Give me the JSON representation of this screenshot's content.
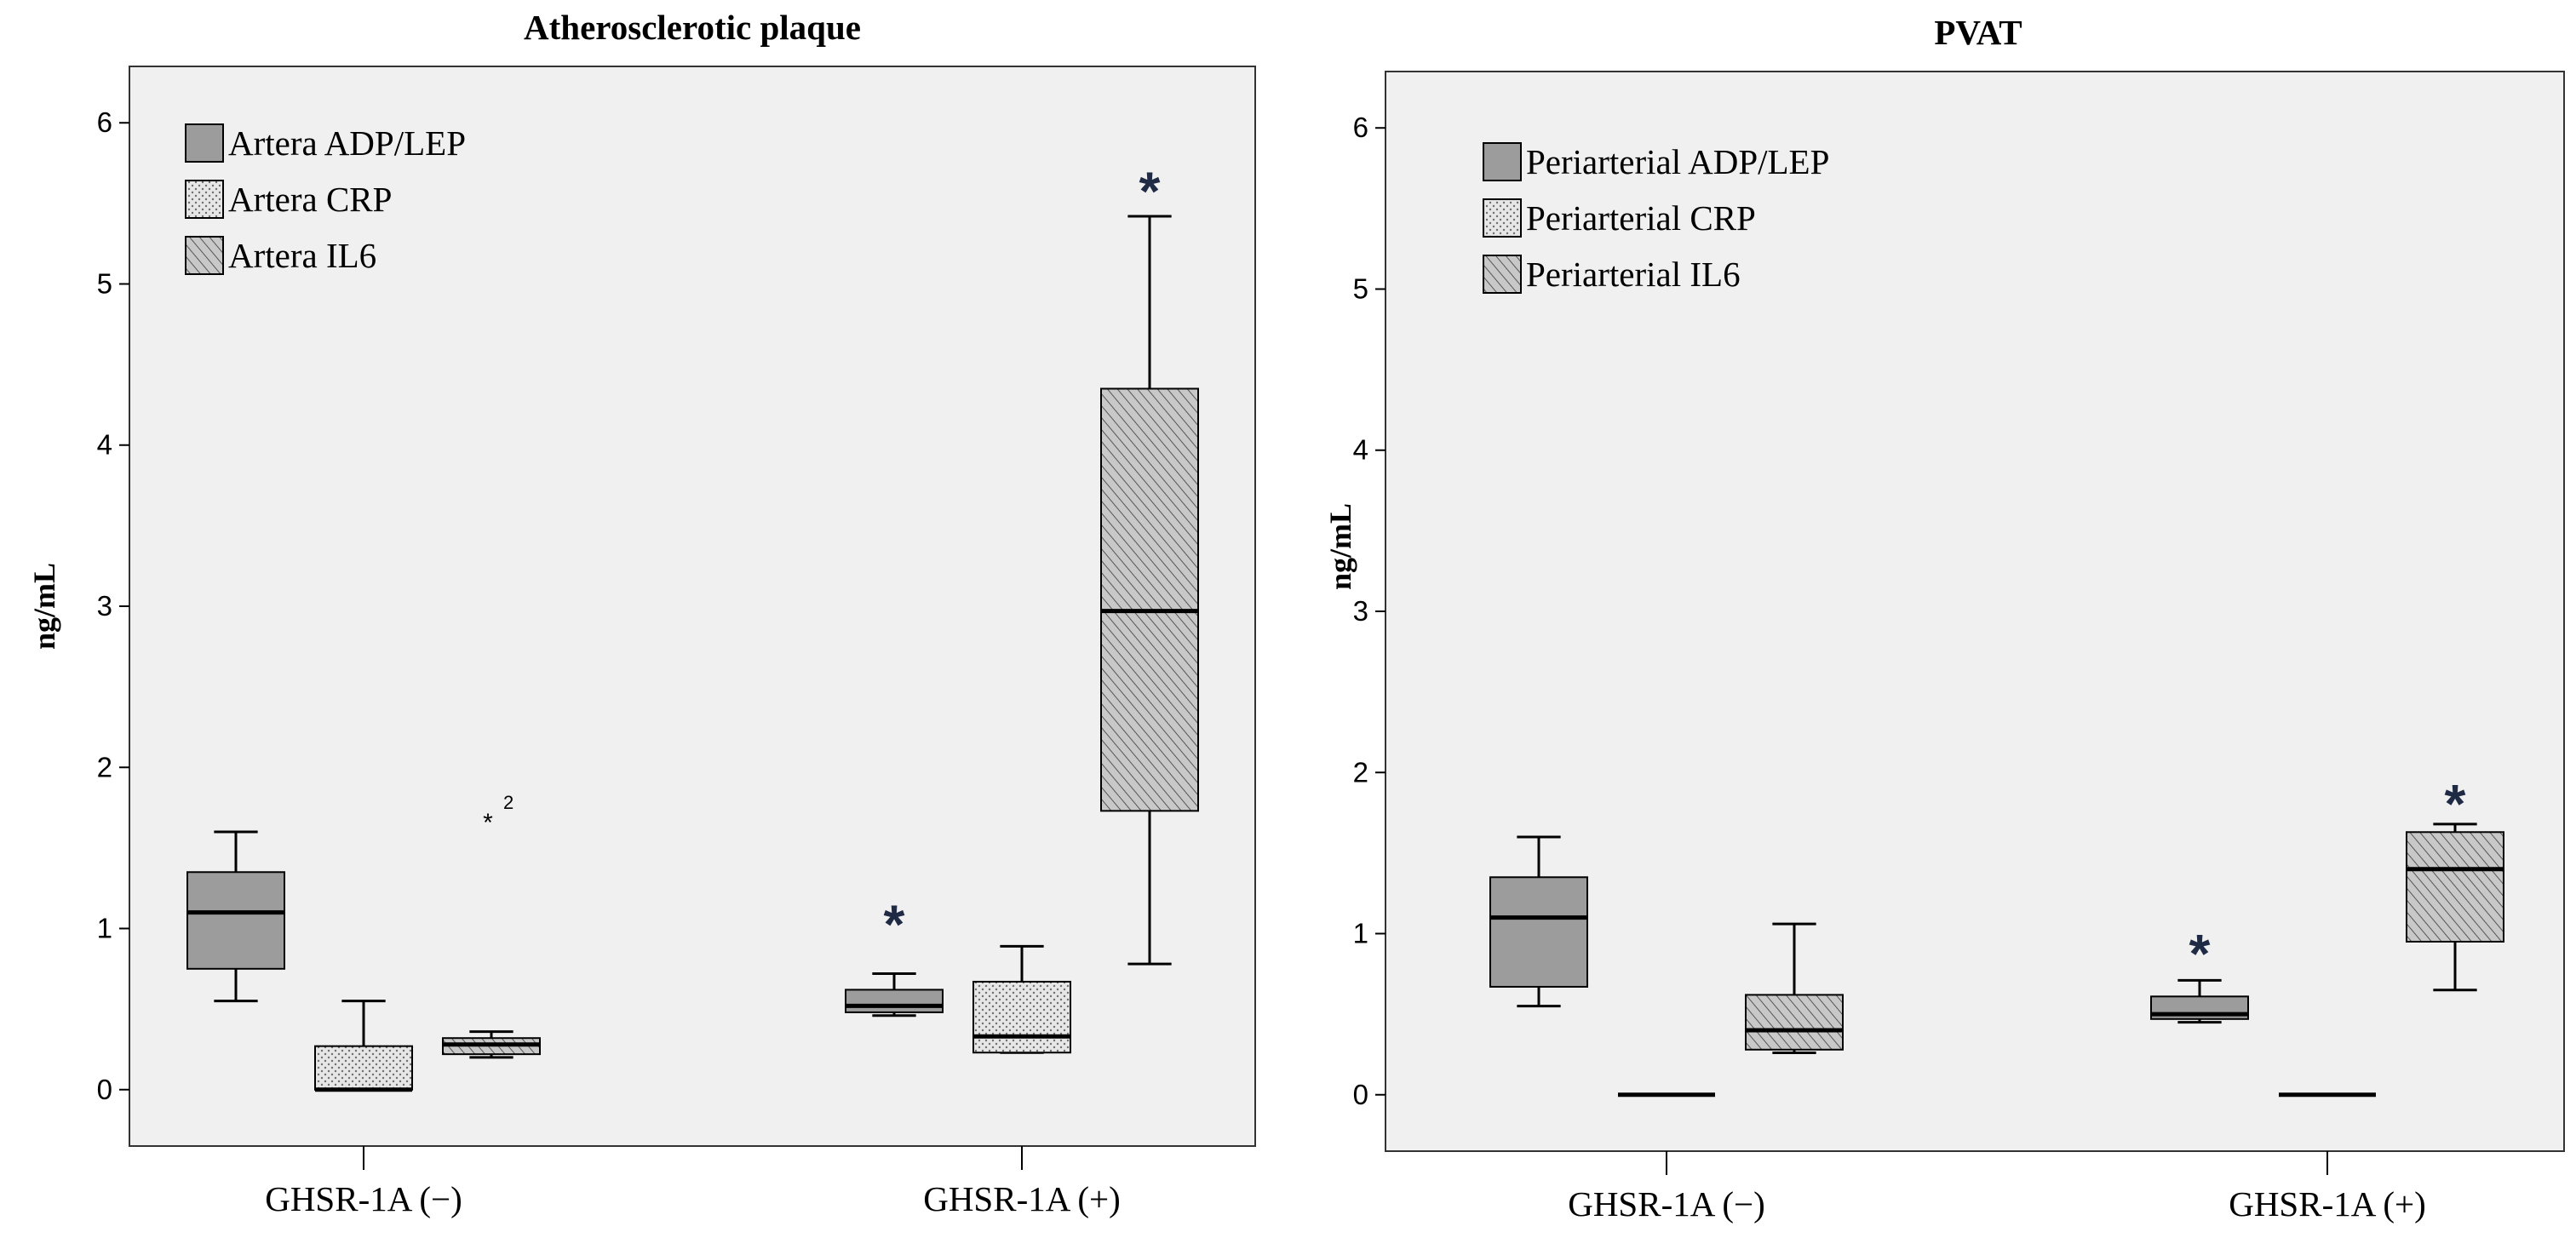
{
  "colors": {
    "plot_bg": "#f0f0f0",
    "adp_lep_fill": "#9c9c9c",
    "crp_fill": "#e6e6e6",
    "il6_fill": "#c4c4c4",
    "asterisk": "#1f2a44"
  },
  "chart_data": [
    {
      "type": "box",
      "title": "Atherosclerotic plaque",
      "ylabel": "ng/mL",
      "xlabel": "",
      "ylim": [
        -0.35,
        6.35
      ],
      "yticks": [
        "0",
        "1",
        "2",
        "3",
        "4",
        "5",
        "6"
      ],
      "categories": [
        "GHSR-1A (−)",
        "GHSR-1A (+)"
      ],
      "legend_position": "top-left",
      "series": [
        {
          "name": "Artera ADP/LEP",
          "pattern": "solid",
          "boxes": [
            {
              "whisker_low": 0.55,
              "q1": 0.75,
              "median": 1.1,
              "q3": 1.35,
              "whisker_high": 1.6
            },
            {
              "whisker_low": 0.46,
              "q1": 0.48,
              "median": 0.52,
              "q3": 0.62,
              "whisker_high": 0.72
            }
          ]
        },
        {
          "name": "Artera CRP",
          "pattern": "dots",
          "boxes": [
            {
              "whisker_low": 0.0,
              "q1": 0.0,
              "median": 0.0,
              "q3": 0.27,
              "whisker_high": 0.55
            },
            {
              "whisker_low": 0.23,
              "q1": 0.23,
              "median": 0.33,
              "q3": 0.67,
              "whisker_high": 0.89
            }
          ]
        },
        {
          "name": "Artera IL6",
          "pattern": "hatch",
          "boxes": [
            {
              "whisker_low": 0.2,
              "q1": 0.22,
              "median": 0.28,
              "q3": 0.32,
              "whisker_high": 0.36
            },
            {
              "whisker_low": 0.78,
              "q1": 1.73,
              "median": 2.97,
              "q3": 4.35,
              "whisker_high": 5.42
            }
          ]
        }
      ],
      "outliers": [
        {
          "series": 2,
          "category": 0,
          "y": 1.7,
          "label": "2"
        }
      ],
      "significance": [
        {
          "series": 0,
          "category": 1,
          "y": 1.1,
          "symbol": "*"
        },
        {
          "series": 2,
          "category": 1,
          "y": 5.65,
          "symbol": "*"
        }
      ]
    },
    {
      "type": "box",
      "title": "PVAT",
      "ylabel": "ng/mL",
      "xlabel": "",
      "ylim": [
        -0.35,
        6.35
      ],
      "yticks": [
        "0",
        "1",
        "2",
        "3",
        "4",
        "5",
        "6"
      ],
      "categories": [
        "GHSR-1A (−)",
        "GHSR-1A (+)"
      ],
      "legend_position": "top-left",
      "series": [
        {
          "name": "Periarterial ADP/LEP",
          "pattern": "solid",
          "boxes": [
            {
              "whisker_low": 0.55,
              "q1": 0.67,
              "median": 1.1,
              "q3": 1.35,
              "whisker_high": 1.6
            },
            {
              "whisker_low": 0.45,
              "q1": 0.47,
              "median": 0.5,
              "q3": 0.61,
              "whisker_high": 0.71
            }
          ]
        },
        {
          "name": "Periarterial CRP",
          "pattern": "dots",
          "boxes": [
            {
              "whisker_low": 0.0,
              "q1": 0.0,
              "median": 0.0,
              "q3": 0.0,
              "whisker_high": 0.0
            },
            {
              "whisker_low": 0.0,
              "q1": 0.0,
              "median": 0.0,
              "q3": 0.0,
              "whisker_high": 0.0
            }
          ]
        },
        {
          "name": "Periarterial IL6",
          "pattern": "hatch",
          "boxes": [
            {
              "whisker_low": 0.26,
              "q1": 0.28,
              "median": 0.4,
              "q3": 0.62,
              "whisker_high": 1.06
            },
            {
              "whisker_low": 0.65,
              "q1": 0.95,
              "median": 1.4,
              "q3": 1.63,
              "whisker_high": 1.68
            }
          ]
        }
      ],
      "outliers": [],
      "significance": [
        {
          "series": 0,
          "category": 1,
          "y": 0.95,
          "symbol": "*"
        },
        {
          "series": 2,
          "category": 1,
          "y": 1.88,
          "symbol": "*"
        }
      ]
    }
  ]
}
